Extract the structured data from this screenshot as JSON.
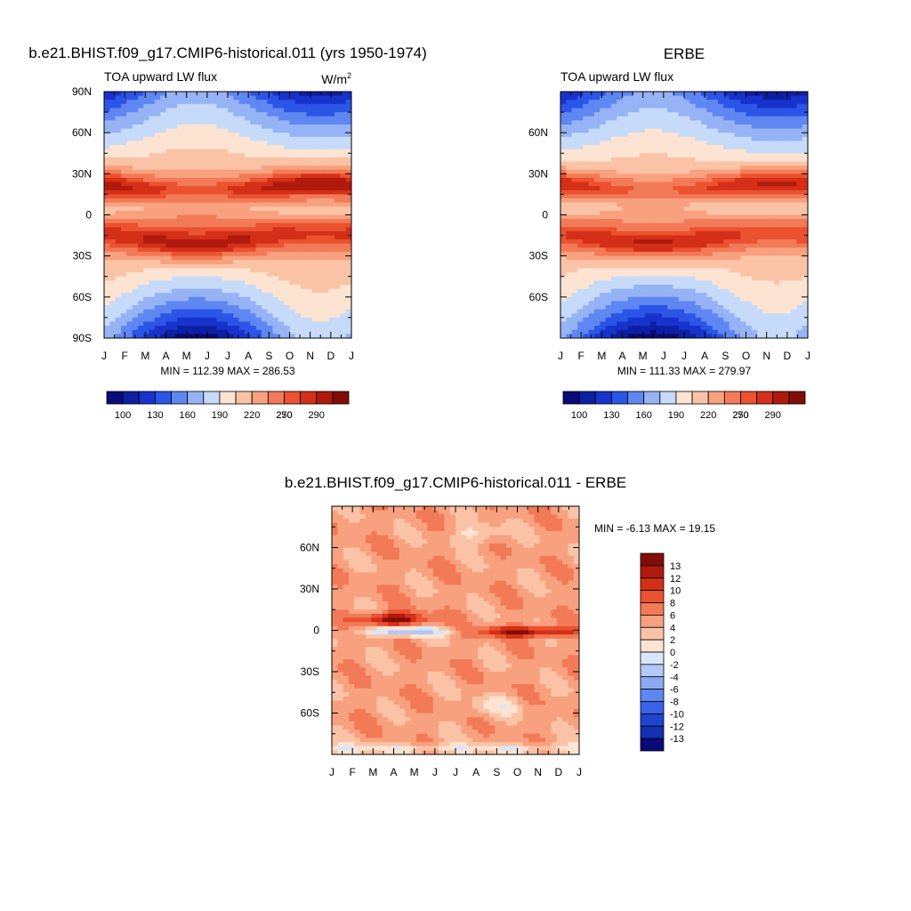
{
  "panels": [
    {
      "title": "b.e21.BHIST.f09_g17.CMIP6-historical.011 (yrs 1950-1974)",
      "left_label": "TOA upward LW flux",
      "units": "W/m",
      "units_sup": "2",
      "stats": "MIN = 112.39 MAX = 286.53"
    },
    {
      "title": "ERBE",
      "left_label": "TOA upward LW flux",
      "units": "",
      "units_sup": "",
      "stats": "MIN = 111.33 MAX = 279.97"
    },
    {
      "title": "b.e21.BHIST.f09_g17.CMIP6-historical.011 - ERBE",
      "left_label": "",
      "units": "",
      "units_sup": "",
      "stats": "MIN =  -6.13 MAX =  19.15"
    }
  ],
  "colors": {
    "flux_levels": [
      "#0a0a78",
      "#0d1fa3",
      "#1733cc",
      "#2a55e6",
      "#5f87f2",
      "#95b3f5",
      "#c6daf9",
      "#fde3d2",
      "#fbc3a6",
      "#f8a17f",
      "#f37a56",
      "#ea5230",
      "#d42f17",
      "#b01a0c",
      "#820d06"
    ],
    "diff_levels": [
      "#820d06",
      "#b01a0c",
      "#d42f17",
      "#ea5230",
      "#f37a56",
      "#f8a17f",
      "#fbc3a6",
      "#fde3d2",
      "#d7e6fb",
      "#b0c9f6",
      "#8aabf2",
      "#5f87f2",
      "#3a62e6",
      "#1f45cf",
      "#1230b0",
      "#0a0a78"
    ]
  },
  "chart_data": [
    {
      "type": "heatmap",
      "title": "b.e21.BHIST.f09_g17.CMIP6-historical.011 (yrs 1950-1974)",
      "subtitle": "TOA upward LW flux",
      "units": "W/m2",
      "x_ticks": [
        "J",
        "F",
        "M",
        "A",
        "M",
        "J",
        "J",
        "A",
        "S",
        "O",
        "N",
        "D",
        "J"
      ],
      "y_ticks": [
        "90N",
        "60N",
        "30N",
        "0",
        "30S",
        "60S",
        "90S"
      ],
      "y_tick_values": [
        90,
        60,
        30,
        0,
        -30,
        -60,
        -90
      ],
      "ylim": [
        -90,
        90
      ],
      "min": 112.39,
      "max": 286.53,
      "colorbar_ticks": [
        "100",
        "130",
        "160",
        "190",
        "220",
        "250",
        "270",
        "290"
      ],
      "colorbar_levels": [
        100,
        130,
        160,
        190,
        220,
        250,
        270,
        290
      ]
    },
    {
      "type": "heatmap",
      "title": "ERBE",
      "subtitle": "TOA upward LW flux",
      "x_ticks": [
        "J",
        "F",
        "M",
        "A",
        "M",
        "J",
        "J",
        "A",
        "S",
        "O",
        "N",
        "D",
        "J"
      ],
      "y_ticks": [
        "60N",
        "30N",
        "0",
        "30S",
        "60S"
      ],
      "y_tick_values": [
        60,
        30,
        0,
        -30,
        -60
      ],
      "ylim": [
        -90,
        90
      ],
      "min": 111.33,
      "max": 279.97,
      "colorbar_ticks": [
        "100",
        "130",
        "160",
        "190",
        "220",
        "250",
        "270",
        "290"
      ],
      "colorbar_levels": [
        100,
        130,
        160,
        190,
        220,
        250,
        270,
        290
      ]
    },
    {
      "type": "heatmap",
      "title": "b.e21.BHIST.f09_g17.CMIP6-historical.011 - ERBE",
      "x_ticks": [
        "J",
        "F",
        "M",
        "A",
        "M",
        "J",
        "J",
        "A",
        "S",
        "O",
        "N",
        "D",
        "J"
      ],
      "y_ticks": [
        "60N",
        "30N",
        "0",
        "30S",
        "60S"
      ],
      "y_tick_values": [
        60,
        30,
        0,
        -30,
        -60
      ],
      "ylim": [
        -90,
        90
      ],
      "min": -6.13,
      "max": 19.15,
      "colorbar_ticks": [
        "13",
        "12",
        "10",
        "8",
        "6",
        "4",
        "2",
        "0",
        "-2",
        "-4",
        "-6",
        "-8",
        "-10",
        "-12",
        "-13"
      ],
      "colorbar_levels": [
        13,
        12,
        10,
        8,
        6,
        4,
        2,
        0,
        -2,
        -4,
        -6,
        -8,
        -10,
        -12,
        -13
      ]
    }
  ]
}
